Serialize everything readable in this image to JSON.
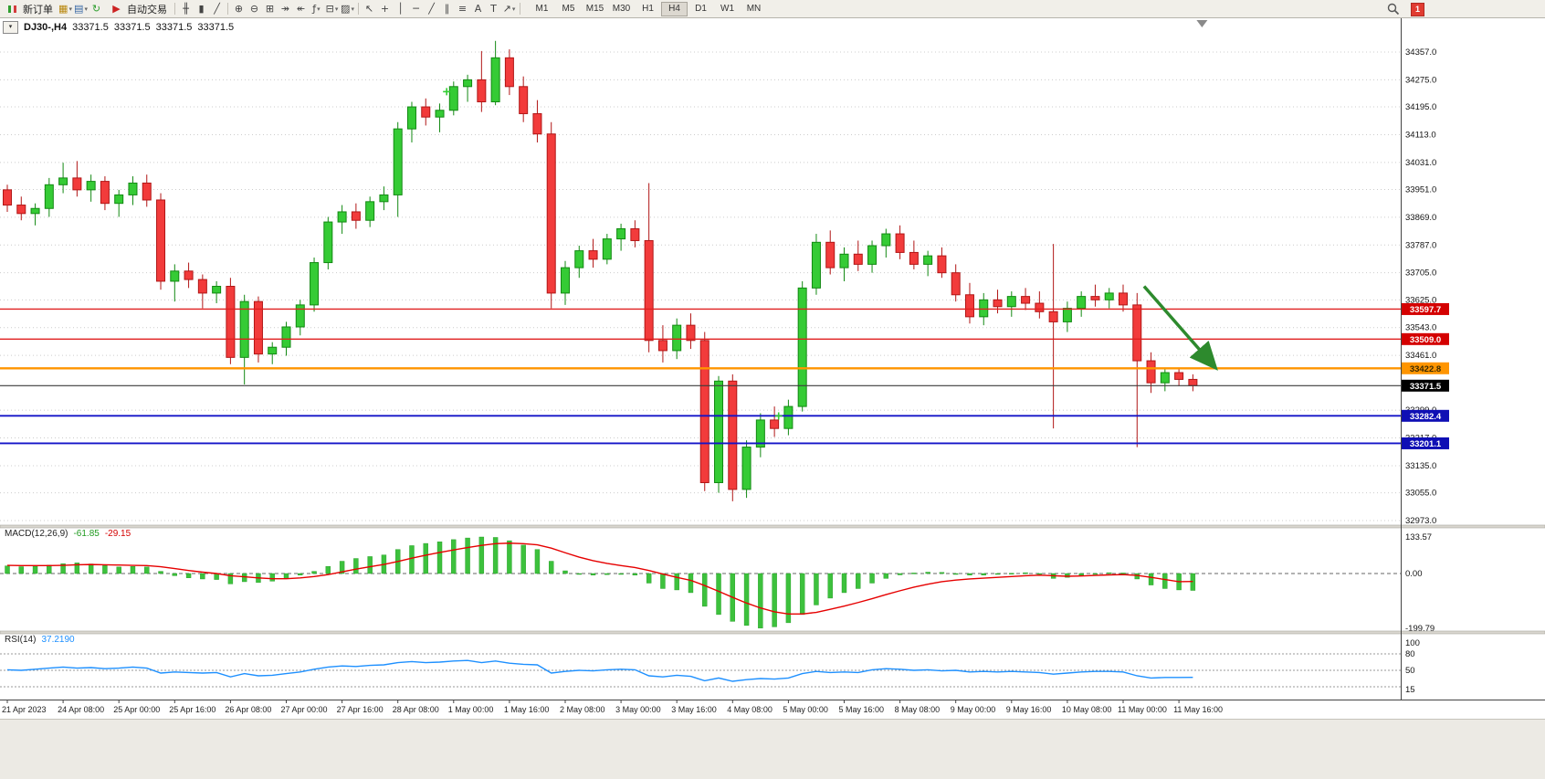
{
  "toolbar": {
    "new_order_label": "新订单",
    "autotrading_label": "自动交易",
    "timeframes": [
      "M1",
      "M5",
      "M15",
      "M30",
      "H1",
      "H4",
      "D1",
      "W1",
      "MN"
    ],
    "active_timeframe": "H4",
    "notification_count": "1",
    "tools_left": [
      {
        "name": "new-chart",
        "glyph": "▦",
        "caret": true,
        "color": "#b8860b"
      },
      {
        "name": "profiles",
        "glyph": "▤",
        "caret": true,
        "color": "#3465a4"
      },
      {
        "name": "refresh",
        "glyph": "↻",
        "color": "#2e9e2e"
      }
    ],
    "tools_main": [
      {
        "name": "sep"
      },
      {
        "name": "bar-chart",
        "glyph": "╫"
      },
      {
        "name": "candlestick-chart",
        "glyph": "▮"
      },
      {
        "name": "line-chart",
        "glyph": "╱"
      },
      {
        "name": "sep"
      },
      {
        "name": "zoom-in",
        "glyph": "⊕"
      },
      {
        "name": "zoom-out",
        "glyph": "⊖"
      },
      {
        "name": "tile-windows",
        "glyph": "⊞"
      },
      {
        "name": "auto-scroll",
        "glyph": "↠"
      },
      {
        "name": "chart-shift",
        "glyph": "↞"
      },
      {
        "name": "indicators",
        "glyph": "ƒ",
        "caret": true
      },
      {
        "name": "periods",
        "glyph": "⊟",
        "caret": true
      },
      {
        "name": "templates",
        "glyph": "▨",
        "caret": true
      },
      {
        "name": "sep"
      },
      {
        "name": "cursor",
        "glyph": "↖"
      },
      {
        "name": "crosshair",
        "glyph": "+"
      },
      {
        "name": "vertical-line",
        "glyph": "│"
      },
      {
        "name": "horizontal-line",
        "glyph": "─"
      },
      {
        "name": "trendline",
        "glyph": "╱"
      },
      {
        "name": "equidistant-channel",
        "glyph": "∥"
      },
      {
        "name": "fibonacci",
        "glyph": "≡"
      },
      {
        "name": "text",
        "glyph": "A"
      },
      {
        "name": "text-label",
        "glyph": "T"
      },
      {
        "name": "arrows",
        "glyph": "↗",
        "caret": true
      },
      {
        "name": "sep"
      }
    ]
  },
  "chart": {
    "collapse_glyph": "▾",
    "symbol_period": "DJ30-,H4",
    "open": "33371.5",
    "high": "33371.5",
    "low": "33371.5",
    "close": "33371.5"
  },
  "indicators": {
    "macd": {
      "name": "MACD(12,26,9)",
      "value_main": "-61.85",
      "value_signal": "-29.15",
      "axis": [
        "133.57",
        "0.00",
        "-199.79"
      ]
    },
    "rsi": {
      "name": "RSI(14)",
      "value": "37.2190",
      "axis": [
        "100",
        "80",
        "50",
        "15"
      ]
    }
  },
  "chart_data": {
    "type": "candlestick",
    "symbol": "DJ30-",
    "timeframe": "H4",
    "price_axis_labels": [
      "34357.0",
      "34275.0",
      "34195.0",
      "34113.0",
      "34031.0",
      "33951.0",
      "33869.0",
      "33787.0",
      "33705.0",
      "33625.0",
      "33543.0",
      "33461.0",
      "33299.0",
      "33217.0",
      "33135.0",
      "33055.0",
      "32973.0"
    ],
    "time_labels": [
      {
        "i": 0,
        "t": "21 Apr 2023"
      },
      {
        "i": 4,
        "t": "24 Apr 08:00"
      },
      {
        "i": 8,
        "t": "25 Apr 00:00"
      },
      {
        "i": 12,
        "t": "25 Apr 16:00"
      },
      {
        "i": 16,
        "t": "26 Apr 08:00"
      },
      {
        "i": 20,
        "t": "27 Apr 00:00"
      },
      {
        "i": 24,
        "t": "27 Apr 16:00"
      },
      {
        "i": 28,
        "t": "28 Apr 08:00"
      },
      {
        "i": 32,
        "t": "1 May 00:00"
      },
      {
        "i": 36,
        "t": "1 May 16:00"
      },
      {
        "i": 40,
        "t": "2 May 08:00"
      },
      {
        "i": 44,
        "t": "3 May 00:00"
      },
      {
        "i": 48,
        "t": "3 May 16:00"
      },
      {
        "i": 52,
        "t": "4 May 08:00"
      },
      {
        "i": 56,
        "t": "5 May 00:00"
      },
      {
        "i": 60,
        "t": "5 May 16:00"
      },
      {
        "i": 64,
        "t": "8 May 08:00"
      },
      {
        "i": 68,
        "t": "9 May 00:00"
      },
      {
        "i": 72,
        "t": "9 May 16:00"
      },
      {
        "i": 76,
        "t": "10 May 08:00"
      },
      {
        "i": 80,
        "t": "11 May 00:00"
      },
      {
        "i": 84,
        "t": "11 May 16:00"
      }
    ],
    "candles": [
      [
        33950,
        33965,
        33885,
        33905
      ],
      [
        33905,
        33930,
        33860,
        33880
      ],
      [
        33880,
        33910,
        33845,
        33895
      ],
      [
        33895,
        33985,
        33870,
        33965
      ],
      [
        33965,
        34030,
        33940,
        33985
      ],
      [
        33985,
        34035,
        33930,
        33950
      ],
      [
        33950,
        33995,
        33915,
        33975
      ],
      [
        33975,
        33990,
        33890,
        33910
      ],
      [
        33910,
        33950,
        33870,
        33935
      ],
      [
        33935,
        33990,
        33905,
        33970
      ],
      [
        33970,
        33995,
        33900,
        33920
      ],
      [
        33920,
        33940,
        33655,
        33680
      ],
      [
        33680,
        33730,
        33620,
        33710
      ],
      [
        33710,
        33735,
        33660,
        33685
      ],
      [
        33685,
        33700,
        33600,
        33645
      ],
      [
        33645,
        33680,
        33615,
        33665
      ],
      [
        33665,
        33690,
        33435,
        33455
      ],
      [
        33455,
        33640,
        33375,
        33620
      ],
      [
        33620,
        33635,
        33440,
        33465
      ],
      [
        33465,
        33500,
        33435,
        33485
      ],
      [
        33485,
        33560,
        33460,
        33545
      ],
      [
        33545,
        33625,
        33520,
        33610
      ],
      [
        33610,
        33750,
        33590,
        33735
      ],
      [
        33735,
        33870,
        33715,
        33855
      ],
      [
        33855,
        33905,
        33820,
        33885
      ],
      [
        33885,
        33910,
        33835,
        33860
      ],
      [
        33860,
        33930,
        33840,
        33915
      ],
      [
        33915,
        33960,
        33890,
        33935
      ],
      [
        33935,
        34150,
        33870,
        34130
      ],
      [
        34130,
        34210,
        34090,
        34195
      ],
      [
        34195,
        34220,
        34140,
        34165
      ],
      [
        34165,
        34205,
        34120,
        34185
      ],
      [
        34185,
        34270,
        34170,
        34255
      ],
      [
        34255,
        34290,
        34210,
        34275
      ],
      [
        34275,
        34360,
        34180,
        34210
      ],
      [
        34210,
        34390,
        34200,
        34340
      ],
      [
        34340,
        34365,
        34230,
        34255
      ],
      [
        34255,
        34285,
        34150,
        34175
      ],
      [
        34175,
        34215,
        34090,
        34115
      ],
      [
        34115,
        34150,
        33600,
        33645
      ],
      [
        33645,
        33740,
        33610,
        33720
      ],
      [
        33720,
        33785,
        33690,
        33770
      ],
      [
        33770,
        33805,
        33720,
        33745
      ],
      [
        33745,
        33820,
        33730,
        33805
      ],
      [
        33805,
        33850,
        33770,
        33835
      ],
      [
        33835,
        33860,
        33780,
        33800
      ],
      [
        33800,
        33970,
        33470,
        33505
      ],
      [
        33505,
        33550,
        33440,
        33475
      ],
      [
        33475,
        33570,
        33450,
        33550
      ],
      [
        33550,
        33585,
        33480,
        33505
      ],
      [
        33505,
        33530,
        33060,
        33085
      ],
      [
        33085,
        33400,
        33055,
        33385
      ],
      [
        33385,
        33405,
        33030,
        33065
      ],
      [
        33065,
        33210,
        33040,
        33190
      ],
      [
        33190,
        33290,
        33160,
        33270
      ],
      [
        33270,
        33310,
        33220,
        33245
      ],
      [
        33245,
        33330,
        33225,
        33310
      ],
      [
        33310,
        33680,
        33295,
        33660
      ],
      [
        33660,
        33820,
        33640,
        33795
      ],
      [
        33795,
        33830,
        33700,
        33720
      ],
      [
        33720,
        33780,
        33680,
        33760
      ],
      [
        33760,
        33800,
        33710,
        33730
      ],
      [
        33730,
        33800,
        33705,
        33785
      ],
      [
        33785,
        33835,
        33750,
        33820
      ],
      [
        33820,
        33845,
        33745,
        33765
      ],
      [
        33765,
        33800,
        33715,
        33730
      ],
      [
        33730,
        33770,
        33695,
        33755
      ],
      [
        33755,
        33780,
        33690,
        33705
      ],
      [
        33705,
        33730,
        33620,
        33640
      ],
      [
        33640,
        33675,
        33555,
        33575
      ],
      [
        33575,
        33645,
        33550,
        33625
      ],
      [
        33625,
        33655,
        33585,
        33605
      ],
      [
        33605,
        33650,
        33575,
        33635
      ],
      [
        33635,
        33660,
        33595,
        33615
      ],
      [
        33615,
        33650,
        33570,
        33590
      ],
      [
        33590,
        33790,
        33245,
        33560
      ],
      [
        33560,
        33620,
        33530,
        33600
      ],
      [
        33600,
        33650,
        33575,
        33635
      ],
      [
        33635,
        33670,
        33605,
        33625
      ],
      [
        33625,
        33660,
        33600,
        33645
      ],
      [
        33645,
        33670,
        33590,
        33610
      ],
      [
        33610,
        33645,
        33190,
        33445
      ],
      [
        33445,
        33470,
        33350,
        33380
      ],
      [
        33380,
        33420,
        33355,
        33410
      ],
      [
        33410,
        33425,
        33370,
        33390
      ],
      [
        33390,
        33405,
        33355,
        33371.5
      ]
    ],
    "levels": [
      {
        "price": 33597.7,
        "label": "33597.7",
        "line_color": "#e01f1f",
        "width": 1.4,
        "tag_bg": "#d40000",
        "tag_fg": "#ffffff"
      },
      {
        "price": 33509.0,
        "label": "33509.0",
        "line_color": "#e01f1f",
        "width": 1.4,
        "tag_bg": "#d40000",
        "tag_fg": "#ffffff"
      },
      {
        "price": 33422.8,
        "label": "33422.8",
        "line_color": "#ff9500",
        "width": 2.4,
        "tag_bg": "#ff9500",
        "tag_fg": "#3a2a00"
      },
      {
        "price": 33371.5,
        "label": "33371.5",
        "line_color": "#3c3c3c",
        "width": 1.2,
        "tag_bg": "#000000",
        "tag_fg": "#ffffff"
      },
      {
        "price": 33282.4,
        "label": "33282.4",
        "line_color": "#1414c8",
        "width": 1.8,
        "tag_bg": "#0f0fb4",
        "tag_fg": "#ffffff"
      },
      {
        "price": 33201.1,
        "label": "33201.1",
        "line_color": "#1414c8",
        "width": 1.8,
        "tag_bg": "#0f0fb4",
        "tag_fg": "#ffffff"
      }
    ],
    "macd": {
      "hist_color": "#3dc13d",
      "signal_color": "#e60000",
      "main": [
        28,
        25,
        27,
        31,
        36,
        39,
        35,
        29,
        24,
        26,
        24,
        8,
        -8,
        -16,
        -20,
        -22,
        -38,
        -30,
        -33,
        -28,
        -18,
        -6,
        8,
        26,
        45,
        55,
        62,
        68,
        88,
        102,
        110,
        116,
        124,
        130,
        133.57,
        132,
        120,
        104,
        88,
        45,
        10,
        -2,
        -6,
        -4,
        -2,
        -6,
        -35,
        -55,
        -60,
        -70,
        -120,
        -150,
        -175,
        -190,
        -199.79,
        -195,
        -180,
        -150,
        -115,
        -90,
        -70,
        -55,
        -35,
        -18,
        -5,
        2,
        5,
        4,
        0,
        -6,
        -6,
        -3,
        1,
        3,
        0,
        -18,
        -14,
        -6,
        0,
        3,
        2,
        -20,
        -42,
        -55,
        -60,
        -61.85
      ],
      "signal": [
        30,
        29,
        29,
        29,
        30,
        32,
        33,
        32,
        31,
        30,
        29,
        25,
        18,
        11,
        5,
        0,
        -8,
        -12,
        -16,
        -19,
        -19,
        -16,
        -11,
        -4,
        6,
        16,
        25,
        33,
        44,
        56,
        67,
        77,
        86,
        95,
        103,
        109,
        111,
        109,
        105,
        93,
        76,
        60,
        47,
        37,
        29,
        22,
        11,
        -2,
        -14,
        -25,
        -44,
        -65,
        -87,
        -108,
        -126,
        -140,
        -148,
        -148,
        -142,
        -131,
        -119,
        -106,
        -92,
        -77,
        -63,
        -50,
        -39,
        -30,
        -24,
        -20,
        -17,
        -14,
        -11,
        -8,
        -6,
        -8,
        -10,
        -9,
        -7,
        -5,
        -4,
        -7,
        -14,
        -22,
        -30,
        -29.15
      ]
    },
    "rsi": {
      "line_color": "#1e90ff",
      "levels": [
        80,
        50,
        20
      ],
      "values": [
        51,
        50,
        52,
        54,
        56,
        54,
        55,
        53,
        54,
        56,
        54,
        45,
        47,
        46,
        45,
        46,
        38,
        44,
        40,
        41,
        44,
        47,
        52,
        56,
        58,
        57,
        59,
        60,
        64,
        66,
        64,
        65,
        67,
        68,
        64,
        67,
        63,
        61,
        60,
        45,
        48,
        50,
        49,
        51,
        52,
        51,
        40,
        38,
        41,
        39,
        31,
        36,
        30,
        33,
        35,
        34,
        36,
        44,
        48,
        46,
        47,
        46,
        51,
        53,
        52,
        50,
        51,
        49,
        50,
        47,
        48,
        47,
        48,
        47,
        46,
        43,
        45,
        47,
        48,
        48,
        47,
        40,
        36,
        37,
        37,
        37.22
      ]
    },
    "annotations": [
      {
        "type": "arrow",
        "from_bar": 81.5,
        "from_price": 33665,
        "to_bar": 86.5,
        "to_price": 33430,
        "color": "#2d8a2d"
      },
      {
        "type": "plus",
        "bar": 31.5,
        "price": 34240,
        "color": "#32cd32"
      },
      {
        "type": "plus",
        "bar": 55.3,
        "price": 33282,
        "color": "#32cd32"
      }
    ],
    "colors": {
      "up": "#35cb35",
      "up_border": "#128912",
      "down": "#f23b3b",
      "down_border": "#b11616"
    }
  }
}
